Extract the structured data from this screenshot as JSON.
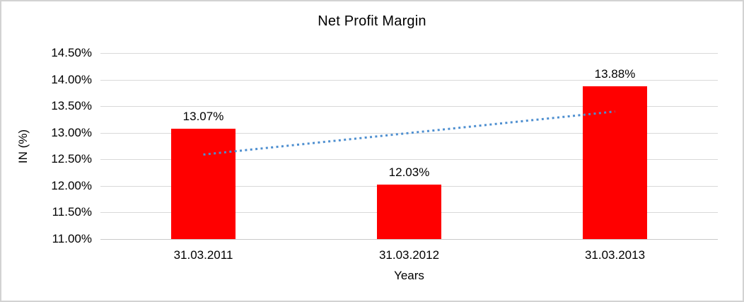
{
  "frame": {
    "background": "#ffffff",
    "border_color": "#d2d2d2"
  },
  "chart_data": {
    "type": "bar",
    "title": "Net Profit Margin",
    "xlabel": "Years",
    "ylabel": "IN (%)",
    "categories": [
      "31.03.2011",
      "31.03.2012",
      "31.03.2013"
    ],
    "values": [
      13.07,
      12.03,
      13.88
    ],
    "data_labels": [
      "13.07%",
      "12.03%",
      "13.88%"
    ],
    "bar_color": "#ff0000",
    "ylim": [
      11.0,
      14.5
    ],
    "yticks": [
      {
        "value": 14.5,
        "label": "14.50%"
      },
      {
        "value": 14.0,
        "label": "14.00%"
      },
      {
        "value": 13.5,
        "label": "13.50%"
      },
      {
        "value": 13.0,
        "label": "13.00%"
      },
      {
        "value": 12.5,
        "label": "12.50%"
      },
      {
        "value": 12.0,
        "label": "12.00%"
      },
      {
        "value": 11.5,
        "label": "11.50%"
      },
      {
        "value": 11.0,
        "label": "11.00%"
      }
    ],
    "grid": true,
    "gridline_color": "#d9d9d9",
    "legend": "none",
    "trendline": {
      "style": "dotted",
      "color": "#4e8fd0",
      "from_category_index": 0,
      "to_category_index": 2,
      "start_value": 12.59,
      "end_value": 13.4
    }
  }
}
